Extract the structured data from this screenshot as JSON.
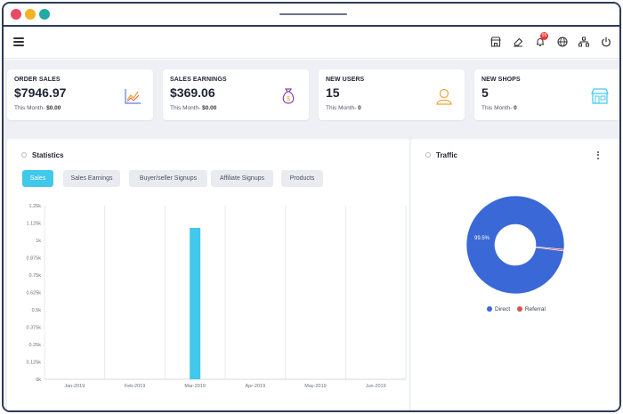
{
  "cards": [
    {
      "title": "ORDER SALES",
      "value": "$7946.97",
      "sub_label": "This Month-",
      "sub_value": "$0.00",
      "icon": "chart-line-icon",
      "icon_color": "#f0a43c"
    },
    {
      "title": "SALES EARNINGS",
      "value": "$369.06",
      "sub_label": "This Month-",
      "sub_value": "$0.00",
      "icon": "money-bag-icon",
      "icon_color": "#8e44ad"
    },
    {
      "title": "NEW USERS",
      "value": "15",
      "sub_label": "This Month-",
      "sub_value": "0",
      "icon": "user-icon",
      "icon_color": "#f0a43c"
    },
    {
      "title": "NEW SHOPS",
      "value": "5",
      "sub_label": "This Month-",
      "sub_value": "0",
      "icon": "shop-icon",
      "icon_color": "#41c8ea"
    }
  ],
  "nav_icons": [
    "store-icon",
    "eraser-icon",
    "bell-icon",
    "globe-icon",
    "sitemap-icon",
    "power-icon"
  ],
  "notification_count": "99",
  "statistics": {
    "title": "Statistics",
    "tabs": [
      {
        "label": "Sales",
        "active": true
      },
      {
        "label": "Sales Earnings",
        "active": false
      },
      {
        "label": "Buyer/seller Signups",
        "active": false
      },
      {
        "label": "Affiliate Signups",
        "active": false
      },
      {
        "label": "Products",
        "active": false
      }
    ]
  },
  "traffic": {
    "title": "Traffic",
    "slice_label": "99.5%"
  },
  "colors": {
    "accent": "#41c8ea",
    "direct": "#3a68d6",
    "referral": "#d9534f"
  },
  "chart_data": [
    {
      "type": "bar",
      "categories": [
        "Jan-2019",
        "Feb-2019",
        "Mar-2019",
        "Apr-2019",
        "May-2019",
        "Jun-2019"
      ],
      "values": [
        0,
        0,
        1090,
        0,
        0,
        0
      ],
      "yticks": [
        "0k",
        "0.125k",
        "0.25k",
        "0.375k",
        "0.5k",
        "0.625k",
        "0.75k",
        "0.875k",
        "1k",
        "1.125k",
        "1.25k"
      ],
      "ylim": [
        0,
        1250
      ],
      "grid": true
    },
    {
      "type": "pie",
      "labels": [
        "Direct",
        "Referral"
      ],
      "values": [
        99.5,
        0.5
      ],
      "legend": "bottom"
    }
  ]
}
